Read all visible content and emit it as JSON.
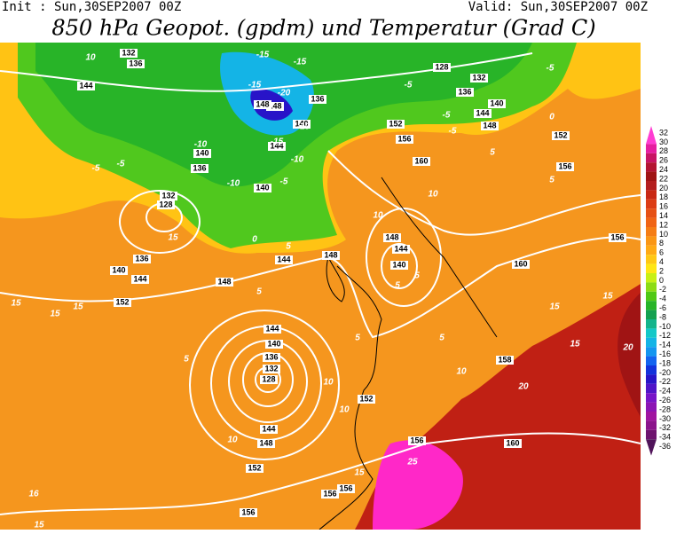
{
  "header": {
    "init": "Init : Sun,30SEP2007 00Z",
    "valid": "Valid: Sun,30SEP2007 00Z",
    "title": "850 hPa Geopot. (gpdm) und Temperatur (Grad C)"
  },
  "colorbar": {
    "labels": [
      32,
      30,
      28,
      26,
      24,
      22,
      20,
      18,
      16,
      14,
      12,
      10,
      8,
      6,
      4,
      2,
      0,
      -2,
      -4,
      -6,
      -8,
      -10,
      -12,
      -14,
      -16,
      -18,
      -20,
      -22,
      -24,
      -26,
      -28,
      -30,
      -32,
      -34,
      -36
    ],
    "colors": [
      "#ff3cd2",
      "#e61ea0",
      "#c81464",
      "#b41432",
      "#a01414",
      "#b41e1e",
      "#c82814",
      "#dc3c14",
      "#e65014",
      "#f06414",
      "#f57d14",
      "#fa9614",
      "#ffaa14",
      "#ffc814",
      "#ffe614",
      "#c8f014",
      "#8cdc14",
      "#50c814",
      "#28b428",
      "#14a050",
      "#14b48c",
      "#14c8c8",
      "#14b4e6",
      "#1496f0",
      "#1464f0",
      "#1432dc",
      "#2814c8",
      "#5014c8",
      "#7814c8",
      "#8c14b4",
      "#a014a0",
      "#8c148c",
      "#6e146e",
      "#50145a"
    ]
  },
  "geopotential_labels": [
    132,
    136,
    144,
    140,
    136,
    140,
    144,
    148,
    152,
    156,
    160,
    128,
    132,
    136,
    140,
    144,
    148,
    152,
    156,
    156,
    160,
    148,
    144,
    140,
    148,
    144,
    148,
    152,
    144,
    140,
    136,
    132,
    128,
    144,
    140,
    136,
    132,
    128,
    144,
    148,
    152,
    152,
    156,
    160,
    156,
    156,
    156,
    158,
    140,
    136,
    148
  ],
  "temperature_labels": [
    10,
    -15,
    -15,
    -20,
    -15,
    -10,
    -15,
    -10,
    -5,
    -5,
    -10,
    -5,
    -10,
    -5,
    -5,
    -5,
    -5,
    0,
    5,
    5,
    10,
    10,
    0,
    5,
    5,
    15,
    15,
    15,
    15,
    15,
    15,
    20,
    20,
    15,
    10,
    5,
    10,
    10,
    5,
    10,
    15,
    25,
    16,
    15,
    5,
    5,
    5
  ]
}
